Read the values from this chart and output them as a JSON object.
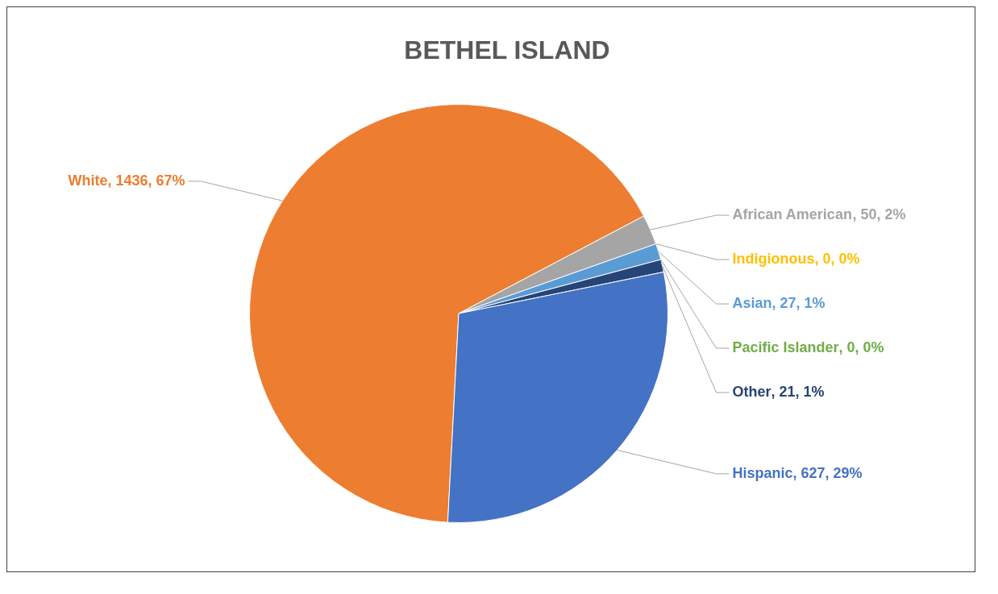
{
  "chart_data": {
    "type": "pie",
    "title": "BETHEL ISLAND",
    "categories": [
      "White",
      "African American",
      "Indigionous",
      "Asian",
      "Pacific Islander",
      "Other",
      "Hispanic"
    ],
    "values": [
      1436,
      50,
      0,
      27,
      0,
      21,
      627
    ],
    "colors": [
      "#ed7d31",
      "#a5a5a5",
      "#ffc000",
      "#5b9bd5",
      "#70ad47",
      "#264478",
      "#4472c4"
    ],
    "value_labels": [
      ", 1436, 67%",
      ", 50, 2%",
      ", 0, 0%",
      ", 27, 1%",
      ", 0, 0%",
      ", 21, 1%",
      ", 627, 29%"
    ],
    "legend": false
  }
}
